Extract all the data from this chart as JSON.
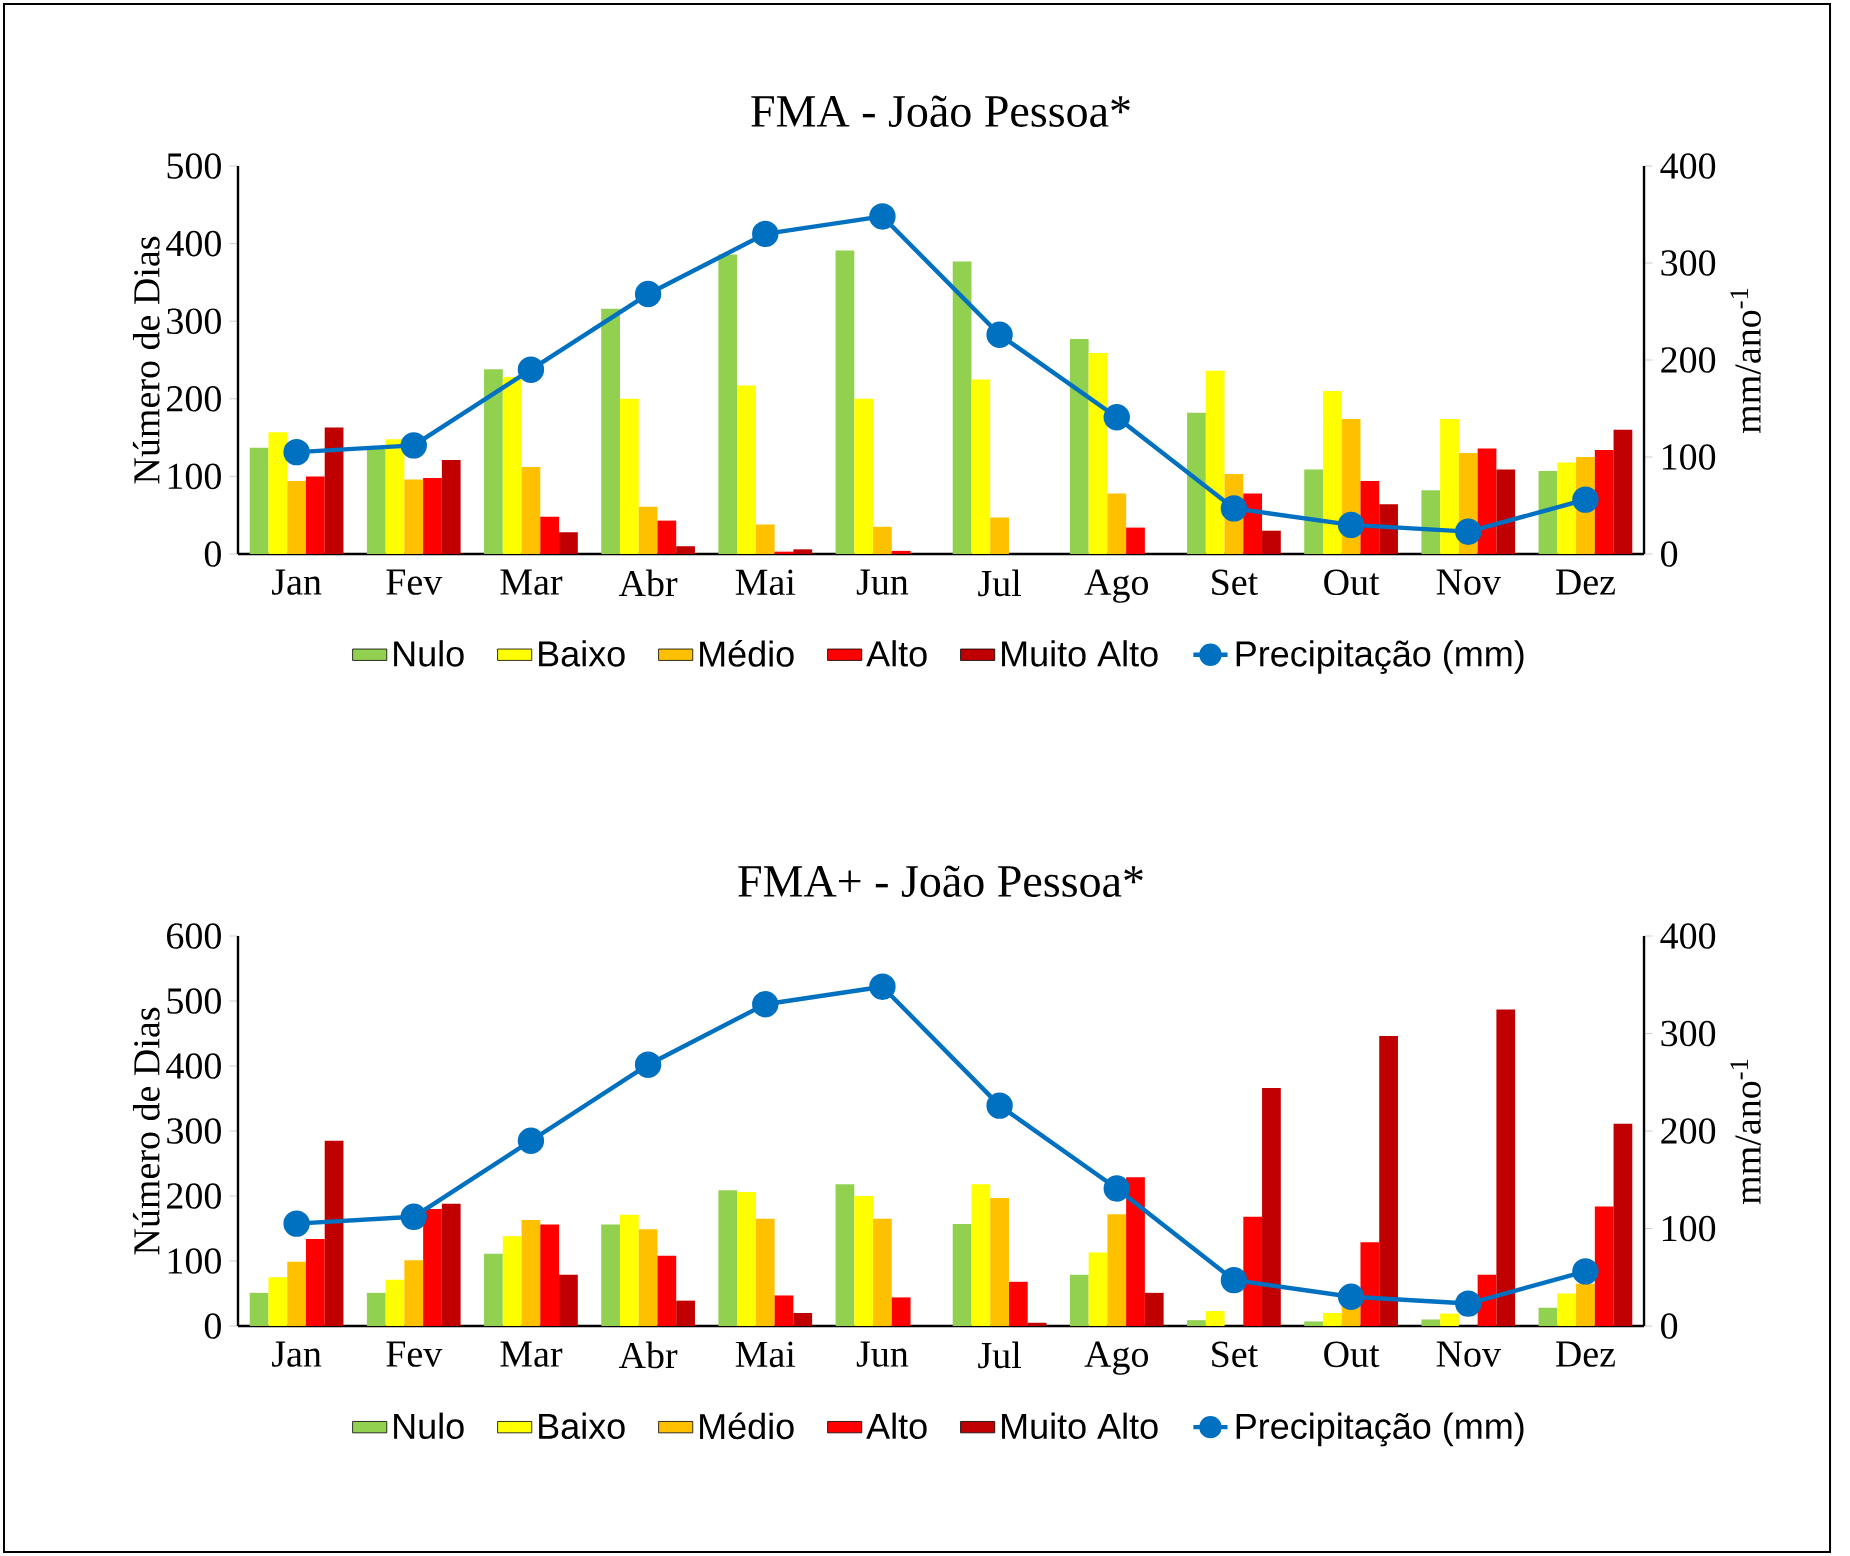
{
  "chart_data": [
    {
      "type": "bar",
      "title": "FMA - João Pessoa*",
      "ylabel": "Número de Dias",
      "y2label": "mm/ano$^{-1}$",
      "categories": [
        "Jan",
        "Fev",
        "Mar",
        "Abr",
        "Mai",
        "Jun",
        "Jul",
        "Ago",
        "Set",
        "Out",
        "Nov",
        "Dez"
      ],
      "series": [
        {
          "name": "Nulo",
          "color": "#92d050",
          "values": [
            137,
            136,
            238,
            316,
            386,
            391,
            377,
            277,
            182,
            109,
            82,
            107
          ]
        },
        {
          "name": "Baixo",
          "color": "#ffff00",
          "values": [
            157,
            148,
            228,
            200,
            217,
            200,
            225,
            259,
            236,
            210,
            174,
            118
          ]
        },
        {
          "name": "Médio",
          "color": "#ffc000",
          "values": [
            94,
            96,
            112,
            61,
            38,
            35,
            47,
            78,
            103,
            174,
            130,
            125
          ]
        },
        {
          "name": "Alto",
          "color": "#ff0000",
          "values": [
            100,
            98,
            48,
            43,
            3,
            4,
            0,
            34,
            78,
            94,
            136,
            134
          ]
        },
        {
          "name": "Muito Alto",
          "color": "#c00000",
          "values": [
            163,
            121,
            28,
            10,
            6,
            0,
            0,
            0,
            30,
            64,
            109,
            160
          ]
        },
        {
          "name": "Precipitação (mm)",
          "color": "#0070c0",
          "type": "line",
          "axis": "y2",
          "marker": "circle",
          "values": [
            105,
            112,
            190,
            268,
            330,
            348,
            226,
            141,
            47,
            30,
            23,
            56
          ]
        }
      ],
      "ylim": [
        0,
        500
      ],
      "yticks": [
        0,
        100,
        200,
        300,
        400,
        500
      ],
      "y2lim": [
        0,
        400
      ],
      "y2ticks": [
        0,
        100,
        200,
        300,
        400
      ],
      "legend": "bottom"
    },
    {
      "type": "bar",
      "title": "FMA+ - João Pessoa*",
      "ylabel": "Número de Dias",
      "y2label": "mm/ano$^{-1}$",
      "categories": [
        "Jan",
        "Fev",
        "Mar",
        "Abr",
        "Mai",
        "Jun",
        "Jul",
        "Ago",
        "Set",
        "Out",
        "Nov",
        "Dez"
      ],
      "series": [
        {
          "name": "Nulo",
          "color": "#92d050",
          "values": [
            51,
            51,
            111,
            156,
            209,
            218,
            157,
            79,
            9,
            7,
            10,
            28
          ]
        },
        {
          "name": "Baixo",
          "color": "#ffff00",
          "values": [
            75,
            71,
            138,
            171,
            206,
            200,
            218,
            113,
            23,
            20,
            19,
            50
          ]
        },
        {
          "name": "Médio",
          "color": "#ffc000",
          "values": [
            99,
            101,
            163,
            149,
            165,
            165,
            197,
            172,
            null,
            32,
            null,
            65
          ]
        },
        {
          "name": "Alto",
          "color": "#ff0000",
          "values": [
            134,
            180,
            156,
            108,
            47,
            44,
            68,
            229,
            168,
            129,
            79,
            184
          ]
        },
        {
          "name": "Muito Alto",
          "color": "#c00000",
          "values": [
            285,
            188,
            79,
            39,
            20,
            0,
            5,
            51,
            366,
            446,
            487,
            311
          ]
        },
        {
          "name": "Precipitação (mm)",
          "color": "#0070c0",
          "type": "line",
          "axis": "y2",
          "marker": "circle",
          "values": [
            105,
            112,
            190,
            268,
            330,
            348,
            226,
            141,
            47,
            30,
            23,
            56
          ]
        }
      ],
      "ylim": [
        0,
        600
      ],
      "yticks": [
        0,
        100,
        200,
        300,
        400,
        500,
        600
      ],
      "y2lim": [
        0,
        400
      ],
      "y2ticks": [
        0,
        100,
        200,
        300,
        400
      ],
      "legend": "bottom"
    }
  ]
}
